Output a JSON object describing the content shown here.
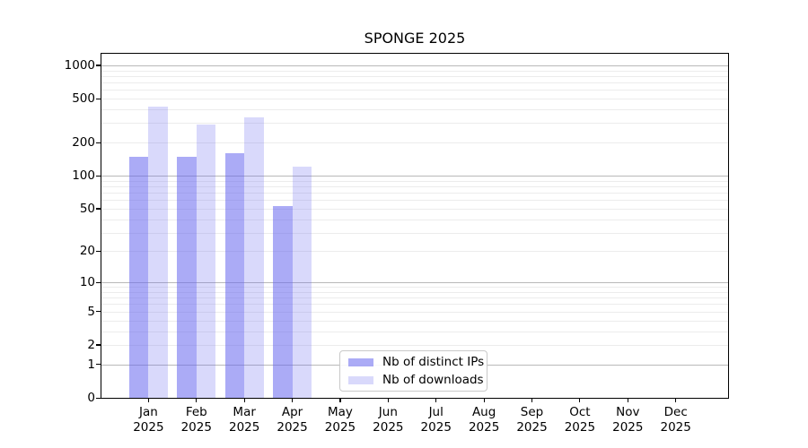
{
  "title": "SPONGE 2025",
  "chart_data": {
    "type": "bar",
    "title": "SPONGE 2025",
    "categories": [
      "Jan 2025",
      "Feb 2025",
      "Mar 2025",
      "Apr 2025",
      "May 2025",
      "Jun 2025",
      "Jul 2025",
      "Aug 2025",
      "Sep 2025",
      "Oct 2025",
      "Nov 2025",
      "Dec 2025"
    ],
    "x_months": [
      "Jan",
      "Feb",
      "Mar",
      "Apr",
      "May",
      "Jun",
      "Jul",
      "Aug",
      "Sep",
      "Oct",
      "Nov",
      "Dec"
    ],
    "x_year": "2025",
    "series": [
      {
        "name": "Nb of distinct IPs",
        "fill": "rgba(102,102,238,0.55)",
        "values": [
          150,
          148,
          160,
          53,
          0,
          0,
          0,
          0,
          0,
          0,
          0,
          0
        ]
      },
      {
        "name": "Nb of downloads",
        "fill": "rgba(102,102,238,0.25)",
        "values": [
          420,
          290,
          340,
          120,
          0,
          0,
          0,
          0,
          0,
          0,
          0,
          0
        ]
      }
    ],
    "yscale": "log1p",
    "ylim": [
      0,
      1273
    ],
    "yticks": [
      0,
      1,
      2,
      5,
      10,
      20,
      50,
      100,
      200,
      500,
      1000
    ],
    "major_gridlines": [
      1,
      10,
      100,
      1000
    ],
    "grid": true,
    "legend_position": "inside-bottom-center"
  },
  "colors": {
    "background": "#ffffff",
    "spine": "#000000",
    "grid_major": "#b9b9b9",
    "grid_minor": "#ececec",
    "text": "#000000",
    "legend_border": "#c9c9c9"
  }
}
